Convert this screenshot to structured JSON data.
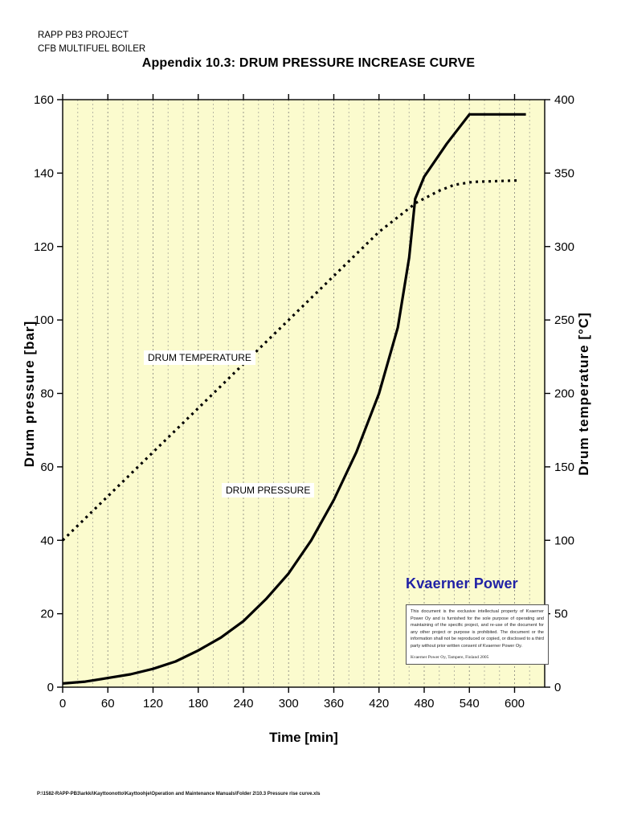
{
  "page": {
    "header_line1": "RAPP PB3 PROJECT",
    "header_line2": "CFB MULTIFUEL BOILER",
    "title": "Appendix 10.3:  DRUM PRESSURE INCREASE CURVE",
    "footer_path": "P:\\1582-RAPP-PB3\\arkki\\Kayttoonotto\\Kayttoohje\\Operation and Maintenance Manuals\\Folder 2\\10.3 Pressure rise curve.xls"
  },
  "logo": {
    "text": "Kvaerner Power",
    "color": "#2021a6"
  },
  "disclaimer": {
    "text": "This document is the exclusive intellectual property of Kvaerner Power Oy and is furnished for the sole purpose of operating and maintaining of the specific project, and re-use of the document for any other project or purpose is prohibited. The document or the information shall not be reproduced or copied, or disclosed to a third party without prior written consent of Kvaerner Power Oy.",
    "credit": "Kvaerner Power Oy, Tampere, Finland  2005"
  },
  "chart_data": {
    "type": "line",
    "title": "Appendix 10.3:  DRUM PRESSURE INCREASE CURVE",
    "xlabel": "Time [min]",
    "ylabel_left": "Drum pressure [bar]",
    "ylabel_right": "Drum temperature [°C]",
    "xlim": [
      0,
      640
    ],
    "x_ticks": [
      0,
      60,
      120,
      180,
      240,
      300,
      360,
      420,
      480,
      540,
      600
    ],
    "y_left": {
      "min": 0,
      "max": 160,
      "ticks": [
        0,
        20,
        40,
        60,
        80,
        100,
        120,
        140,
        160
      ]
    },
    "y_right": {
      "min": 0,
      "max": 400,
      "ticks": [
        0,
        50,
        100,
        150,
        200,
        250,
        300,
        350,
        400
      ]
    },
    "grid": {
      "style": "dashed-vertical",
      "minor_step": 20,
      "major_step": 60,
      "minor_color": "#b8b8a4",
      "major_color": "#98988a"
    },
    "plot_bg": "#fbfbce",
    "series": [
      {
        "name": "DRUM PRESSURE",
        "axis": "left",
        "style": "solid",
        "color": "#000000",
        "points": [
          [
            0,
            1
          ],
          [
            30,
            1.5
          ],
          [
            60,
            2.5
          ],
          [
            90,
            3.5
          ],
          [
            120,
            5
          ],
          [
            150,
            7
          ],
          [
            180,
            10
          ],
          [
            210,
            13.5
          ],
          [
            240,
            18
          ],
          [
            270,
            24
          ],
          [
            300,
            31
          ],
          [
            330,
            40
          ],
          [
            360,
            51
          ],
          [
            390,
            64
          ],
          [
            420,
            80
          ],
          [
            445,
            98
          ],
          [
            460,
            117
          ],
          [
            468,
            133
          ],
          [
            480,
            139
          ],
          [
            510,
            148
          ],
          [
            540,
            156
          ],
          [
            615,
            156
          ]
        ]
      },
      {
        "name": "DRUM TEMPERATURE",
        "axis": "right",
        "style": "dotted",
        "color": "#000000",
        "points": [
          [
            0,
            100
          ],
          [
            60,
            130
          ],
          [
            120,
            160
          ],
          [
            180,
            190
          ],
          [
            240,
            220
          ],
          [
            300,
            250
          ],
          [
            360,
            280
          ],
          [
            420,
            310
          ],
          [
            450,
            322
          ],
          [
            470,
            330
          ],
          [
            500,
            338
          ],
          [
            520,
            342
          ],
          [
            545,
            344
          ],
          [
            605,
            345
          ]
        ]
      }
    ],
    "series_labels": [
      {
        "text": "DRUM TEMPERATURE"
      },
      {
        "text": "DRUM PRESSURE"
      }
    ],
    "legend_position": "none"
  }
}
